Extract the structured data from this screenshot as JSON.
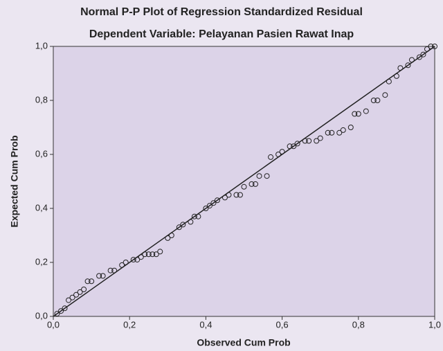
{
  "chart_data": {
    "type": "scatter",
    "title": "Normal P-P Plot of Regression Standardized Residual",
    "subtitle": "Dependent Variable: Pelayanan Pasien Rawat Inap",
    "x_label": "Observed Cum Prob",
    "y_label": "Expected Cum Prob",
    "xlim": [
      0,
      1
    ],
    "ylim": [
      0,
      1
    ],
    "xticks": [
      {
        "value": 0,
        "label": "0,0"
      },
      {
        "value": 0.2,
        "label": "0,2"
      },
      {
        "value": 0.4,
        "label": "0,4"
      },
      {
        "value": 0.6,
        "label": "0,6"
      },
      {
        "value": 0.8,
        "label": "0,8"
      },
      {
        "value": 1,
        "label": "1,0"
      }
    ],
    "yticks": [
      {
        "value": 0,
        "label": "0,0"
      },
      {
        "value": 0.2,
        "label": "0,2"
      },
      {
        "value": 0.4,
        "label": "0,4"
      },
      {
        "value": 0.6,
        "label": "0,6"
      },
      {
        "value": 0.8,
        "label": "0,8"
      },
      {
        "value": 1,
        "label": "1,0"
      }
    ],
    "reference_line": true,
    "color": "#222222",
    "x": [
      0.01,
      0.02,
      0.03,
      0.04,
      0.05,
      0.06,
      0.07,
      0.08,
      0.09,
      0.1,
      0.12,
      0.13,
      0.15,
      0.16,
      0.18,
      0.19,
      0.21,
      0.22,
      0.23,
      0.24,
      0.25,
      0.26,
      0.27,
      0.28,
      0.3,
      0.31,
      0.33,
      0.34,
      0.36,
      0.37,
      0.38,
      0.4,
      0.41,
      0.42,
      0.43,
      0.45,
      0.46,
      0.48,
      0.49,
      0.5,
      0.52,
      0.53,
      0.54,
      0.56,
      0.57,
      0.59,
      0.6,
      0.62,
      0.63,
      0.64,
      0.66,
      0.67,
      0.69,
      0.7,
      0.72,
      0.73,
      0.75,
      0.76,
      0.78,
      0.79,
      0.8,
      0.82,
      0.84,
      0.85,
      0.87,
      0.88,
      0.9,
      0.91,
      0.93,
      0.94,
      0.96,
      0.97,
      0.98,
      0.99,
      1.0
    ],
    "values": [
      0.01,
      0.02,
      0.03,
      0.06,
      0.07,
      0.08,
      0.09,
      0.1,
      0.13,
      0.13,
      0.15,
      0.15,
      0.17,
      0.17,
      0.19,
      0.2,
      0.21,
      0.21,
      0.22,
      0.23,
      0.23,
      0.23,
      0.23,
      0.24,
      0.29,
      0.3,
      0.33,
      0.34,
      0.35,
      0.37,
      0.37,
      0.4,
      0.41,
      0.42,
      0.43,
      0.44,
      0.45,
      0.45,
      0.45,
      0.48,
      0.49,
      0.49,
      0.52,
      0.52,
      0.59,
      0.6,
      0.61,
      0.63,
      0.63,
      0.64,
      0.65,
      0.65,
      0.65,
      0.66,
      0.68,
      0.68,
      0.68,
      0.69,
      0.7,
      0.75,
      0.75,
      0.76,
      0.8,
      0.8,
      0.82,
      0.87,
      0.89,
      0.92,
      0.93,
      0.95,
      0.96,
      0.97,
      0.99,
      1.0,
      1.0
    ]
  }
}
